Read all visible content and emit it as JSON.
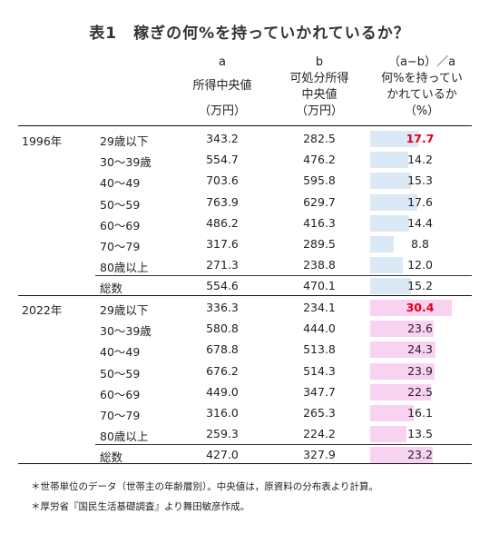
{
  "title": "表1　稼ぎの何%を持っていかれているか？",
  "headers": {
    "a_letter": "a",
    "a_label": "所得中央値",
    "a_unit": "（万円）",
    "b_letter": "b",
    "b_label1": "可処分所得",
    "b_label2": "中央値",
    "b_unit": "（万円）",
    "r_formula": "（a−b）／a",
    "r_label1": "何%を持ってい",
    "r_label2": "かれているか",
    "r_unit": "（%）"
  },
  "colors": {
    "bar_1996": "#dbe8f5",
    "bar_2022": "#f9d2f2",
    "highlight": "#e0001b"
  },
  "groups": [
    {
      "year": "1996年",
      "rows": [
        {
          "cat": "29歳以下",
          "a": "343.2",
          "b": "282.5",
          "r": "17.7",
          "rv": 17.7,
          "highlight": true
        },
        {
          "cat": "30〜39歳",
          "a": "554.7",
          "b": "476.2",
          "r": "14.2",
          "rv": 14.2
        },
        {
          "cat": "40〜49",
          "a": "703.6",
          "b": "595.8",
          "r": "15.3",
          "rv": 15.3
        },
        {
          "cat": "50〜59",
          "a": "763.9",
          "b": "629.7",
          "r": "17.6",
          "rv": 17.6
        },
        {
          "cat": "60〜69",
          "a": "486.2",
          "b": "416.3",
          "r": "14.4",
          "rv": 14.4
        },
        {
          "cat": "70〜79",
          "a": "317.6",
          "b": "289.5",
          "r": "8.8",
          "rv": 8.8
        },
        {
          "cat": "80歳以上",
          "a": "271.3",
          "b": "238.8",
          "r": "12.0",
          "rv": 12.0
        }
      ],
      "total": {
        "cat": "総数",
        "a": "554.6",
        "b": "470.1",
        "r": "15.2",
        "rv": 15.2
      }
    },
    {
      "year": "2022年",
      "rows": [
        {
          "cat": "29歳以下",
          "a": "336.3",
          "b": "234.1",
          "r": "30.4",
          "rv": 30.4,
          "highlight": true
        },
        {
          "cat": "30〜39歳",
          "a": "580.8",
          "b": "444.0",
          "r": "23.6",
          "rv": 23.6
        },
        {
          "cat": "40〜49",
          "a": "678.8",
          "b": "513.8",
          "r": "24.3",
          "rv": 24.3
        },
        {
          "cat": "50〜59",
          "a": "676.2",
          "b": "514.3",
          "r": "23.9",
          "rv": 23.9
        },
        {
          "cat": "60〜69",
          "a": "449.0",
          "b": "347.7",
          "r": "22.5",
          "rv": 22.5
        },
        {
          "cat": "70〜79",
          "a": "316.0",
          "b": "265.3",
          "r": "16.1",
          "rv": 16.1
        },
        {
          "cat": "80歳以上",
          "a": "259.3",
          "b": "224.2",
          "r": "13.5",
          "rv": 13.5
        }
      ],
      "total": {
        "cat": "総数",
        "a": "427.0",
        "b": "327.9",
        "r": "23.2",
        "rv": 23.2
      }
    }
  ],
  "notes": [
    "＊世帯単位のデータ（世帯主の年齢層別）。中央値は，原資料の分布表より計算。",
    "＊厚労省『国民生活基礎調査』より舞田敏彦作成。"
  ]
}
